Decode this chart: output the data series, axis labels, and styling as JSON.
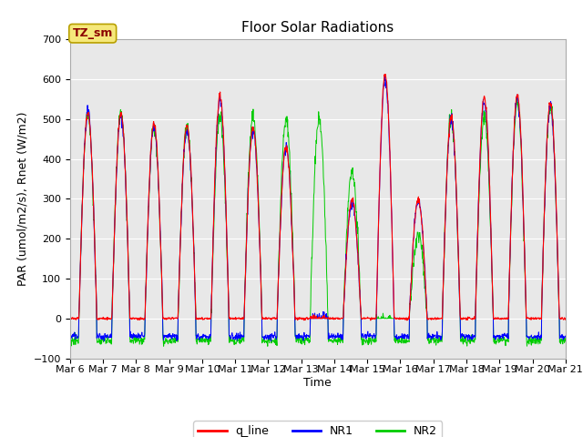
{
  "title": "Floor Solar Radiations",
  "ylabel": "PAR (umol/m2/s), Rnet (W/m2)",
  "xlabel": "Time",
  "annotation": "TZ_sm",
  "ylim": [
    -100,
    700
  ],
  "yticks": [
    -100,
    0,
    100,
    200,
    300,
    400,
    500,
    600,
    700
  ],
  "start_day": 6,
  "end_day": 21,
  "num_days": 15,
  "background_color": "#e8e8e8",
  "q_line_color": "red",
  "NR1_color": "blue",
  "NR2_color": "#00cc00",
  "legend_entries": [
    "q_line",
    "NR1",
    "NR2"
  ],
  "legend_colors": [
    "red",
    "blue",
    "#00cc00"
  ],
  "title_fontsize": 11,
  "label_fontsize": 9,
  "tick_fontsize": 8,
  "annotation_fontsize": 9,
  "day_peaks_q": [
    515,
    515,
    490,
    485,
    560,
    480,
    430,
    0,
    295,
    610,
    295,
    505,
    555,
    560,
    540
  ],
  "day_peaks_NR1": [
    515,
    510,
    480,
    475,
    550,
    475,
    430,
    0,
    295,
    600,
    295,
    500,
    545,
    550,
    530
  ],
  "day_peaks_NR2": [
    510,
    520,
    480,
    480,
    505,
    505,
    500,
    500,
    365,
    0,
    210,
    505,
    505,
    540,
    535
  ],
  "night_q": 0,
  "night_NR1": -45,
  "night_NR2": -55,
  "figsize": [
    6.4,
    4.8
  ],
  "dpi": 100
}
